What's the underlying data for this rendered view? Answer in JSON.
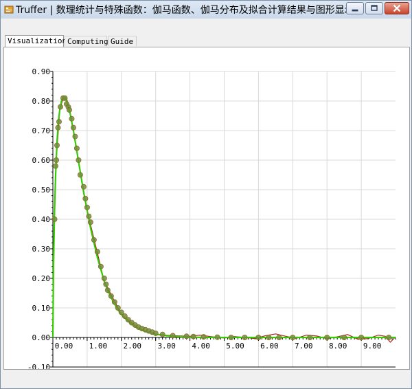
{
  "window": {
    "title": "Truffer | 数理统计与特殊函数：伽马函数、伽马分布及拟合计算结果与图形显示",
    "minimize_icon": "minimize-icon",
    "maximize_icon": "maximize-icon",
    "close_icon": "close-icon"
  },
  "tabs": [
    {
      "label": "Visualization",
      "active": true
    },
    {
      "label": "Computing",
      "active": false
    },
    {
      "label": "Guide",
      "active": false
    }
  ],
  "colors": {
    "fit_curve": "#33cc00",
    "interp_curve": "#b02020",
    "points": "#6f8f3a",
    "grid": "#d9d9d9"
  },
  "chart_data": {
    "type": "scatter",
    "xlim": [
      0,
      10
    ],
    "ylim": [
      -0.1,
      0.9
    ],
    "x_ticks": [
      "0.00",
      "1.00",
      "2.00",
      "3.00",
      "4.00",
      "5.00",
      "6.00",
      "7.00",
      "8.00",
      "9.00"
    ],
    "y_ticks": [
      "-0.10",
      "0.00",
      "0.10",
      "0.20",
      "0.30",
      "0.40",
      "0.50",
      "0.60",
      "0.70",
      "0.80",
      "0.90"
    ],
    "grid": true,
    "fit_curve": {
      "x": [
        0.0,
        0.02,
        0.05,
        0.08,
        0.12,
        0.16,
        0.2,
        0.25,
        0.3,
        0.35,
        0.4,
        0.45,
        0.5,
        0.55,
        0.6,
        0.7,
        0.8,
        0.9,
        1.0,
        1.1,
        1.2,
        1.3,
        1.4,
        1.5,
        1.6,
        1.7,
        1.8,
        1.9,
        2.0,
        2.2,
        2.4,
        2.6,
        2.8,
        3.0,
        3.3,
        3.6,
        4.0,
        4.5,
        5.0,
        6.0,
        7.0,
        8.0,
        9.0,
        10.0
      ],
      "y": [
        0.0,
        0.26,
        0.43,
        0.55,
        0.66,
        0.73,
        0.77,
        0.8,
        0.81,
        0.81,
        0.8,
        0.78,
        0.76,
        0.73,
        0.7,
        0.63,
        0.56,
        0.49,
        0.43,
        0.37,
        0.32,
        0.27,
        0.23,
        0.19,
        0.16,
        0.135,
        0.113,
        0.094,
        0.078,
        0.054,
        0.037,
        0.025,
        0.017,
        0.011,
        0.006,
        0.003,
        0.001,
        0.0,
        0.0,
        0.0,
        0.0,
        0.0,
        0.0,
        0.0
      ]
    },
    "interp_curve": {
      "x": [
        0.0,
        0.05,
        0.1,
        0.2,
        0.3,
        0.4,
        0.5,
        0.7,
        1.0,
        1.5,
        2.0,
        2.5,
        3.0,
        3.5,
        4.0,
        4.3,
        4.6,
        5.0,
        5.3,
        5.6,
        5.9,
        6.2,
        6.5,
        6.8,
        7.1,
        7.4,
        7.7,
        8.0,
        8.3,
        8.6,
        8.9,
        9.2,
        9.5,
        9.7,
        9.85,
        10.0
      ],
      "y": [
        0.0,
        0.44,
        0.6,
        0.77,
        0.81,
        0.81,
        0.76,
        0.63,
        0.43,
        0.19,
        0.078,
        0.03,
        0.011,
        0.006,
        0.004,
        0.008,
        0.003,
        -0.002,
        0.003,
        0.0,
        -0.004,
        0.006,
        0.012,
        0.004,
        -0.003,
        0.008,
        0.005,
        -0.004,
        0.002,
        0.01,
        -0.006,
        -0.004,
        0.008,
        0.004,
        -0.016,
        0.002
      ]
    },
    "points": {
      "x": [
        0.05,
        0.08,
        0.1,
        0.12,
        0.15,
        0.18,
        0.22,
        0.3,
        0.35,
        0.4,
        0.45,
        0.48,
        0.55,
        0.6,
        0.65,
        0.7,
        0.75,
        0.8,
        0.9,
        0.95,
        1.0,
        1.05,
        1.1,
        1.2,
        1.3,
        1.4,
        1.5,
        1.55,
        1.6,
        1.7,
        1.8,
        1.9,
        2.0,
        2.1,
        2.2,
        2.3,
        2.4,
        2.5,
        2.6,
        2.7,
        2.8,
        2.9,
        3.0,
        3.2,
        3.5,
        3.9,
        4.1,
        4.4,
        4.8,
        5.2,
        5.6,
        6.0,
        6.3,
        6.6,
        7.0,
        7.5,
        8.0,
        8.5,
        9.0,
        9.8
      ],
      "y": [
        0.4,
        0.58,
        0.6,
        0.65,
        0.71,
        0.73,
        0.78,
        0.81,
        0.81,
        0.79,
        0.78,
        0.77,
        0.74,
        0.71,
        0.68,
        0.64,
        0.6,
        0.55,
        0.51,
        0.47,
        0.44,
        0.41,
        0.39,
        0.33,
        0.29,
        0.24,
        0.2,
        0.18,
        0.16,
        0.14,
        0.12,
        0.1,
        0.085,
        0.072,
        0.06,
        0.05,
        0.042,
        0.035,
        0.03,
        0.026,
        0.022,
        0.018,
        0.014,
        0.01,
        0.006,
        0.004,
        0.003,
        0.002,
        0.001,
        0.0,
        0.0,
        0.0,
        0.0,
        0.0,
        0.0,
        0.0,
        0.0,
        0.0,
        0.0,
        0.0
      ]
    }
  }
}
